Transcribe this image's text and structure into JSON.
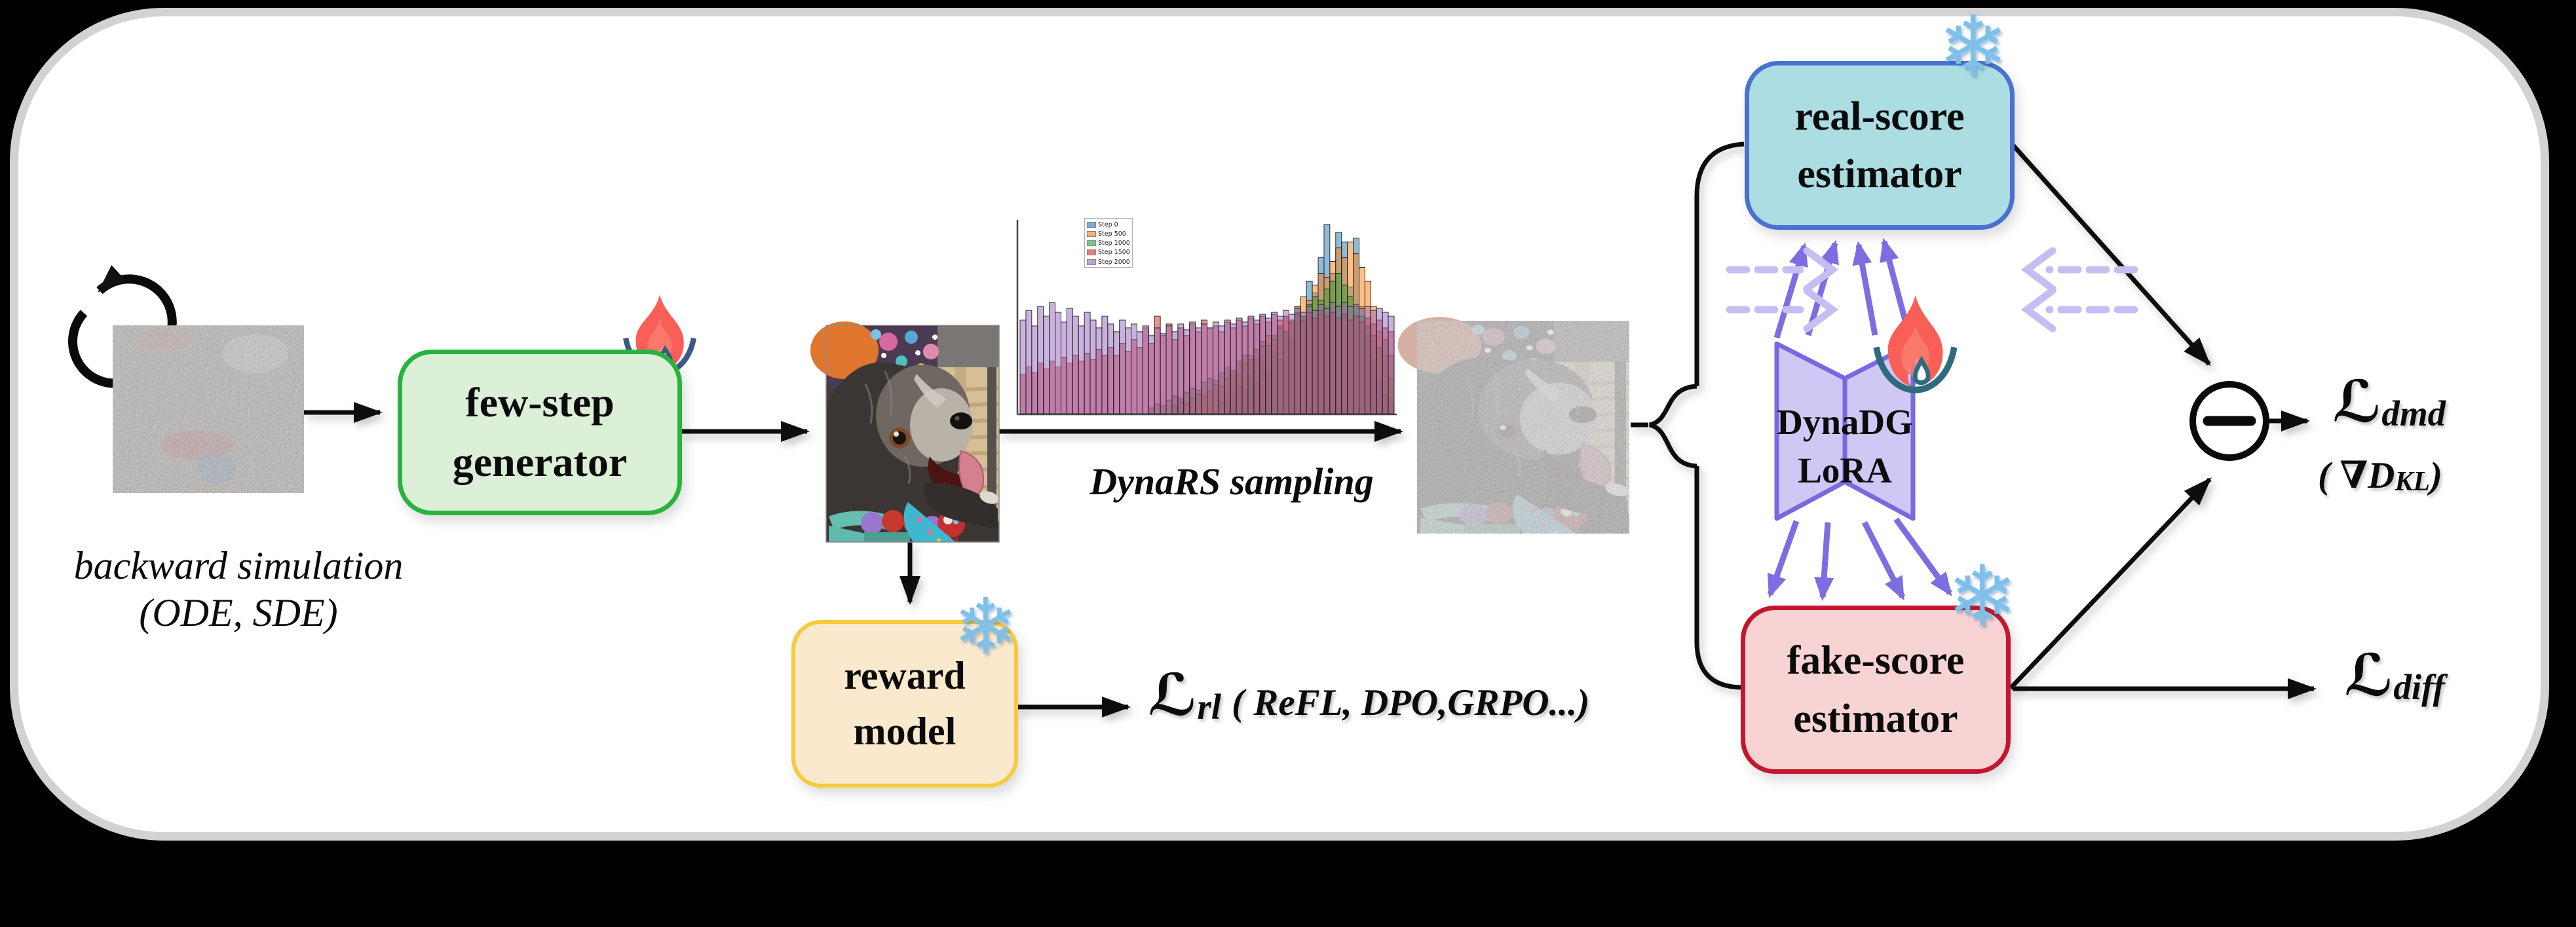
{
  "panel": {
    "bg": "#ffffff",
    "border": "#d2d2d2",
    "outer_bg": "#000000"
  },
  "nodes": {
    "generator": {
      "line1": "few-step",
      "line2": "generator",
      "fill": "#dcefd7",
      "border": "#29b33e"
    },
    "real": {
      "line1": "real-score",
      "line2": "estimator",
      "fill": "#abdde2",
      "border": "#4a71cf"
    },
    "fake": {
      "line1": "fake-score",
      "line2": "estimator",
      "fill": "#f8d3d4",
      "border": "#c2182f"
    },
    "reward": {
      "line1": "reward",
      "line2": "model",
      "fill": "#fbe9cd",
      "border": "#f6ca3d"
    },
    "lora": {
      "line1": "DynaDG",
      "line2": "LoRA",
      "fill": "#cfc8f4",
      "border": "#7a68e0"
    }
  },
  "annotations": {
    "backward_line1": "backward simulation",
    "backward_line2": "(ODE, SDE)",
    "dynars": "DynaRS sampling"
  },
  "losses": {
    "rl": {
      "L": "ℒ",
      "sub": "rl",
      "note": "( ReFL, DPO,GRPO...)"
    },
    "dmd": {
      "L": "ℒ",
      "sub": "dmd",
      "note_pre": "( ∇D",
      "note_sub": "KL",
      "note_post": " )"
    },
    "diff": {
      "L": "ℒ",
      "sub": "diff"
    }
  },
  "icons": {
    "snowflake": "❄",
    "flame": "flame-with-droplet (trainable)",
    "snowflake_meaning": "frozen",
    "cycle": "backward-cycle-arrows",
    "minus_node": "minus-circle"
  },
  "colors": {
    "arrow": "#111111",
    "purple_arrow": "#7c6ee2",
    "dashed_arrow": "#c6bef2",
    "flame": "#f95f57",
    "droplet_arc_generator": "#3c5a86",
    "droplet_arc_lora": "#2e6b7c",
    "snowflake": "#7ec0ea"
  },
  "chart_data": {
    "type": "bar",
    "title": "",
    "xlabel": "",
    "ylabel": "",
    "legend_position": "upper left",
    "grid": false,
    "x_bins": 64,
    "ylim": [
      0,
      1
    ],
    "series": [
      {
        "name": "Step 0",
        "color": "#1f77b4",
        "values": [
          0,
          0,
          0,
          0,
          0,
          0,
          0,
          0,
          0,
          0,
          0,
          0,
          0,
          0,
          0,
          0,
          0,
          0,
          0,
          0,
          0,
          0,
          0,
          0,
          0,
          0,
          0,
          0,
          0,
          0,
          0,
          0,
          0,
          0,
          0.06,
          0.1,
          0.08,
          0.14,
          0.12,
          0.2,
          0.16,
          0.26,
          0.22,
          0.32,
          0.28,
          0.42,
          0.38,
          0.55,
          0.5,
          0.68,
          0.62,
          0.8,
          0.97,
          0.72,
          0.93,
          0.88,
          0.65,
          0.9,
          0.55,
          0.4,
          0.28,
          0.16,
          0.1,
          0.05
        ]
      },
      {
        "name": "Step 500",
        "color": "#ff7f0e",
        "values": [
          0,
          0,
          0,
          0,
          0,
          0,
          0,
          0,
          0,
          0,
          0,
          0,
          0,
          0,
          0,
          0,
          0,
          0,
          0,
          0,
          0,
          0,
          0,
          0,
          0,
          0,
          0.04,
          0.06,
          0.05,
          0.08,
          0.1,
          0.09,
          0.12,
          0.15,
          0.14,
          0.18,
          0.22,
          0.2,
          0.26,
          0.3,
          0.28,
          0.35,
          0.4,
          0.38,
          0.45,
          0.5,
          0.48,
          0.55,
          0.6,
          0.58,
          0.66,
          0.72,
          0.7,
          0.78,
          0.85,
          0.8,
          0.88,
          0.82,
          0.75,
          0.68,
          0.55,
          0.42,
          0.3,
          0.18
        ]
      },
      {
        "name": "Step 1000",
        "color": "#2ca02c",
        "values": [
          0,
          0,
          0,
          0,
          0,
          0,
          0,
          0,
          0,
          0,
          0,
          0,
          0,
          0,
          0,
          0,
          0,
          0,
          0,
          0,
          0,
          0,
          0.03,
          0.05,
          0.04,
          0.07,
          0.09,
          0.08,
          0.11,
          0.13,
          0.12,
          0.16,
          0.18,
          0.17,
          0.21,
          0.24,
          0.22,
          0.27,
          0.3,
          0.28,
          0.33,
          0.37,
          0.35,
          0.4,
          0.44,
          0.42,
          0.47,
          0.52,
          0.5,
          0.56,
          0.6,
          0.58,
          0.64,
          0.68,
          0.72,
          0.66,
          0.6,
          0.55,
          0.5,
          0.45,
          0.4,
          0.34,
          0.38,
          0.3
        ]
      },
      {
        "name": "Step 1500",
        "color": "#d62728",
        "values": [
          0.2,
          0.24,
          0.21,
          0.26,
          0.23,
          0.27,
          0.24,
          0.29,
          0.26,
          0.3,
          0.27,
          0.31,
          0.28,
          0.33,
          0.3,
          0.34,
          0.3,
          0.36,
          0.32,
          0.38,
          0.34,
          0.44,
          0.36,
          0.5,
          0.4,
          0.46,
          0.38,
          0.44,
          0.4,
          0.46,
          0.42,
          0.48,
          0.44,
          0.45,
          0.42,
          0.47,
          0.44,
          0.48,
          0.45,
          0.49,
          0.46,
          0.5,
          0.47,
          0.51,
          0.48,
          0.5,
          0.47,
          0.51,
          0.48,
          0.52,
          0.49,
          0.53,
          0.5,
          0.52,
          0.49,
          0.51,
          0.48,
          0.5,
          0.47,
          0.49,
          0.46,
          0.48,
          0.44,
          0.42
        ]
      },
      {
        "name": "Step 2000",
        "color": "#9467bd",
        "values": [
          0.48,
          0.53,
          0.45,
          0.55,
          0.5,
          0.57,
          0.52,
          0.47,
          0.54,
          0.5,
          0.45,
          0.52,
          0.48,
          0.44,
          0.5,
          0.46,
          0.42,
          0.48,
          0.44,
          0.46,
          0.42,
          0.45,
          0.4,
          0.44,
          0.41,
          0.45,
          0.42,
          0.46,
          0.43,
          0.47,
          0.44,
          0.46,
          0.44,
          0.47,
          0.45,
          0.48,
          0.46,
          0.49,
          0.47,
          0.5,
          0.48,
          0.51,
          0.49,
          0.52,
          0.5,
          0.53,
          0.51,
          0.54,
          0.52,
          0.55,
          0.53,
          0.56,
          0.54,
          0.57,
          0.55,
          0.57,
          0.55,
          0.56,
          0.54,
          0.55,
          0.53,
          0.54,
          0.52,
          0.5
        ]
      }
    ]
  }
}
